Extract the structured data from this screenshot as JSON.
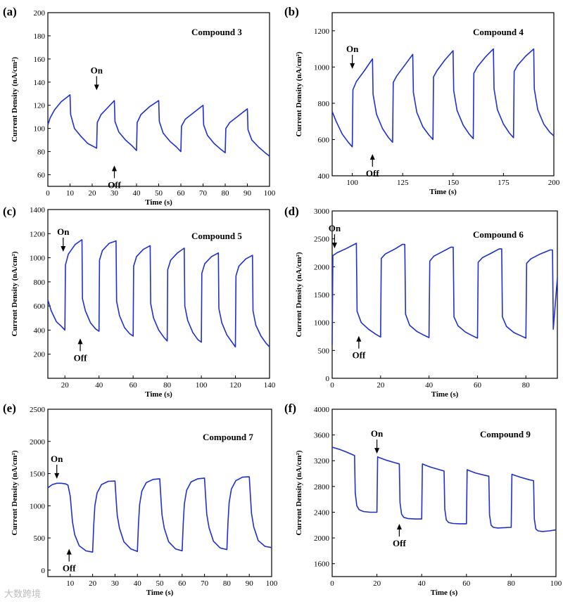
{
  "watermark": "大数跨境",
  "chart_data": [
    {
      "type": "line",
      "panel_label": "(a)",
      "compound": "Compound 3",
      "xlabel": "Time (s)",
      "ylabel": "Current Density (nA/cm²)",
      "xlim": [
        0,
        100
      ],
      "ylim": [
        50,
        200
      ],
      "xticks": [
        0,
        10,
        20,
        30,
        40,
        50,
        60,
        70,
        80,
        90,
        100
      ],
      "yticks": [
        60,
        80,
        100,
        120,
        140,
        160,
        180,
        200
      ],
      "color": "#1f2fd0",
      "on_label": "On",
      "off_label": "Off",
      "on_arrow": {
        "x": 22,
        "y": 133
      },
      "off_arrow": {
        "x": 30,
        "y": 68
      },
      "series": [
        {
          "name": "photocurrent",
          "x": [
            0,
            1,
            3,
            6,
            10,
            10.3,
            12,
            15,
            18,
            22,
            22.3,
            24,
            27,
            30,
            30.3,
            32,
            35,
            38,
            40,
            40.3,
            42,
            46,
            50,
            50.3,
            52,
            55,
            58,
            60,
            60.3,
            62,
            66,
            70,
            70.3,
            72,
            75,
            78,
            80,
            80.3,
            82,
            86,
            90,
            90.3,
            92,
            95,
            98,
            100
          ],
          "y": [
            103,
            109,
            116,
            123,
            129,
            112,
            100,
            93,
            87,
            83,
            105,
            112,
            118,
            124,
            106,
            97,
            90,
            85,
            81,
            105,
            112,
            119,
            124,
            106,
            96,
            89,
            84,
            80,
            102,
            108,
            114,
            120,
            103,
            94,
            87,
            82,
            79,
            100,
            105,
            111,
            117,
            99,
            90,
            84,
            79,
            76
          ]
        }
      ]
    },
    {
      "type": "line",
      "panel_label": "(b)",
      "compound": "Compound 4",
      "xlabel": "Time (s)",
      "ylabel": "Current Density (nA/cm²)",
      "xlim": [
        90,
        200
      ],
      "ylim": [
        400,
        1300
      ],
      "xticks": [
        100,
        125,
        150,
        175,
        200
      ],
      "yticks": [
        400,
        600,
        800,
        1000,
        1200
      ],
      "color": "#1f2fd0",
      "on_label": "On",
      "off_label": "Off",
      "on_arrow": {
        "x": 100,
        "y": 990
      },
      "off_arrow": {
        "x": 110,
        "y": 520
      },
      "series": [
        {
          "name": "photocurrent",
          "x": [
            90,
            92,
            95,
            98,
            100,
            100.3,
            102,
            106,
            110,
            110.3,
            112,
            115,
            118,
            120,
            120.3,
            122,
            126,
            130,
            130.3,
            132,
            135,
            138,
            140,
            140.3,
            142,
            146,
            150,
            150.3,
            152,
            155,
            158,
            160,
            160.3,
            162,
            166,
            170,
            170.3,
            172,
            175,
            178,
            180,
            180.3,
            182,
            186,
            190,
            190.3,
            192,
            195,
            198,
            200
          ],
          "y": [
            755,
            700,
            630,
            585,
            560,
            875,
            920,
            980,
            1045,
            850,
            740,
            660,
            610,
            585,
            915,
            950,
            1010,
            1070,
            860,
            750,
            670,
            625,
            600,
            945,
            980,
            1040,
            1090,
            870,
            760,
            680,
            630,
            605,
            965,
            1000,
            1055,
            1100,
            880,
            765,
            685,
            635,
            610,
            975,
            1010,
            1060,
            1100,
            880,
            765,
            685,
            640,
            620
          ]
        }
      ]
    },
    {
      "type": "line",
      "panel_label": "(c)",
      "compound": "Compound 5",
      "xlabel": "Time (s)",
      "ylabel": "Current Density (nA/cm²)",
      "xlim": [
        10,
        140
      ],
      "ylim": [
        0,
        1400
      ],
      "xticks": [
        20,
        40,
        60,
        80,
        100,
        120,
        140
      ],
      "yticks": [
        200,
        400,
        600,
        800,
        1000,
        1200,
        1400
      ],
      "color": "#1f2fd0",
      "on_label": "On",
      "off_label": "Off",
      "on_arrow": {
        "x": 19,
        "y": 1050
      },
      "off_arrow": {
        "x": 29,
        "y": 330
      },
      "series": [
        {
          "name": "photocurrent",
          "x": [
            10,
            12,
            15,
            18,
            20,
            20.3,
            22,
            26,
            30,
            30.3,
            32,
            35,
            38,
            40,
            40.3,
            42,
            46,
            50,
            50.3,
            52,
            55,
            58,
            60,
            60.3,
            62,
            66,
            70,
            70.3,
            72,
            75,
            78,
            80,
            80.3,
            82,
            86,
            90,
            90.3,
            92,
            95,
            98,
            100,
            100.3,
            102,
            106,
            110,
            110.3,
            112,
            115,
            118,
            120,
            120.3,
            122,
            126,
            130,
            130.3,
            132,
            135,
            138,
            140
          ],
          "y": [
            650,
            560,
            470,
            430,
            400,
            940,
            1030,
            1110,
            1150,
            660,
            560,
            460,
            410,
            390,
            980,
            1060,
            1120,
            1140,
            640,
            520,
            420,
            370,
            350,
            930,
            1010,
            1070,
            1100,
            620,
            500,
            400,
            340,
            310,
            900,
            980,
            1040,
            1080,
            600,
            480,
            380,
            320,
            300,
            870,
            950,
            1010,
            1040,
            580,
            460,
            360,
            300,
            260,
            850,
            930,
            990,
            1020,
            560,
            440,
            350,
            290,
            260
          ]
        }
      ]
    },
    {
      "type": "line",
      "panel_label": "(d)",
      "compound": "Compound 6",
      "xlabel": "Time (s)",
      "ylabel": "Current Density (nA/cm²)",
      "xlim": [
        0,
        93
      ],
      "ylim": [
        0,
        3000
      ],
      "xticks": [
        0,
        20,
        40,
        60,
        80
      ],
      "yticks": [
        0,
        500,
        1000,
        1500,
        2000,
        2500,
        3000
      ],
      "color": "#1f2fd0",
      "on_label": "On",
      "off_label": "Off",
      "on_arrow": {
        "x": 1,
        "y": 2330
      },
      "off_arrow": {
        "x": 11,
        "y": 760
      },
      "series": [
        {
          "name": "photocurrent",
          "x": [
            0,
            0.3,
            2,
            6,
            10,
            10.3,
            12,
            15,
            18,
            20,
            20.3,
            22,
            26,
            29,
            30,
            30.3,
            32,
            35,
            38,
            40,
            40.3,
            42,
            46,
            49,
            50,
            50.3,
            52,
            55,
            58,
            60,
            60.3,
            62,
            66,
            69,
            70,
            70.3,
            72,
            75,
            78,
            80,
            80.3,
            82,
            86,
            90,
            91,
            91.3,
            93
          ],
          "y": [
            600,
            2200,
            2250,
            2330,
            2420,
            1200,
            1000,
            880,
            790,
            740,
            2150,
            2230,
            2320,
            2400,
            2400,
            1150,
            950,
            840,
            770,
            730,
            2100,
            2190,
            2280,
            2350,
            2350,
            1100,
            940,
            830,
            760,
            720,
            2080,
            2160,
            2250,
            2320,
            2320,
            1100,
            930,
            820,
            760,
            720,
            2060,
            2140,
            2230,
            2300,
            2300,
            880,
            1800
          ]
        }
      ]
    },
    {
      "type": "line",
      "panel_label": "(e)",
      "compound": "Compound 7",
      "xlabel": "Time (s)",
      "ylabel": "Current Density (nA/cm²)",
      "xlim": [
        0,
        100
      ],
      "ylim": [
        -100,
        2500
      ],
      "xticks": [
        10,
        20,
        30,
        40,
        50,
        60,
        70,
        80,
        90,
        100
      ],
      "yticks": [
        0,
        500,
        1000,
        1500,
        2000,
        2500
      ],
      "color": "#1f2fd0",
      "on_label": "On",
      "off_label": "Off",
      "on_arrow": {
        "x": 4,
        "y": 1420
      },
      "off_arrow": {
        "x": 9.5,
        "y": 330
      },
      "series": [
        {
          "name": "photocurrent",
          "x": [
            0,
            2,
            4,
            6,
            8,
            9,
            10,
            10.5,
            11,
            12,
            14,
            17,
            20,
            20.5,
            21,
            22,
            24,
            27,
            30,
            30.5,
            31,
            32,
            34,
            37,
            40,
            40.5,
            41,
            42,
            44,
            47,
            50,
            50.5,
            51,
            52,
            54,
            57,
            60,
            60.5,
            61,
            62,
            64,
            67,
            70,
            70.5,
            71,
            72,
            74,
            77,
            80,
            80.5,
            81,
            82,
            84,
            87,
            90,
            90.5,
            91,
            92,
            94,
            97,
            100
          ],
          "y": [
            1280,
            1330,
            1350,
            1350,
            1340,
            1320,
            1150,
            950,
            750,
            550,
            380,
            300,
            280,
            700,
            1000,
            1200,
            1330,
            1380,
            1385,
            1100,
            850,
            650,
            440,
            330,
            290,
            720,
            1020,
            1230,
            1360,
            1410,
            1420,
            1130,
            860,
            650,
            440,
            330,
            300,
            730,
            1030,
            1240,
            1370,
            1420,
            1430,
            1140,
            870,
            660,
            450,
            345,
            320,
            750,
            1050,
            1260,
            1390,
            1445,
            1450,
            1160,
            880,
            670,
            460,
            370,
            350
          ]
        }
      ]
    },
    {
      "type": "line",
      "panel_label": "(f)",
      "compound": "Compound 9",
      "xlabel": "Time (s)",
      "ylabel": "Current Density (nA/cm²)",
      "xlim": [
        0,
        100
      ],
      "ylim": [
        1400,
        4000
      ],
      "xticks": [
        0,
        20,
        40,
        60,
        80,
        100
      ],
      "yticks": [
        1600,
        2000,
        2400,
        2800,
        3200,
        3600,
        4000
      ],
      "color": "#1f2fd0",
      "on_label": "On",
      "off_label": "Off",
      "on_arrow": {
        "x": 20,
        "y": 3310
      },
      "off_arrow": {
        "x": 30,
        "y": 2220
      },
      "series": [
        {
          "name": "photocurrent",
          "x": [
            0,
            3,
            6,
            10,
            10.3,
            11,
            12,
            14,
            17,
            20,
            20.3,
            21,
            24,
            28,
            30,
            30.3,
            31,
            32,
            34,
            37,
            40,
            40.3,
            41,
            44,
            48,
            50,
            50.3,
            51,
            52,
            54,
            57,
            60,
            60.3,
            61,
            64,
            68,
            70,
            70.3,
            71,
            72,
            74,
            77,
            80,
            80.3,
            81,
            84,
            88,
            90,
            90.3,
            91,
            92,
            94,
            97,
            100
          ],
          "y": [
            3410,
            3380,
            3340,
            3280,
            2700,
            2500,
            2440,
            2410,
            2400,
            2400,
            3260,
            3250,
            3210,
            3170,
            3150,
            2550,
            2370,
            2320,
            2300,
            2295,
            2295,
            3150,
            3140,
            3100,
            3060,
            3040,
            2450,
            2280,
            2240,
            2225,
            2220,
            2220,
            3060,
            3050,
            3010,
            2975,
            2960,
            2360,
            2200,
            2165,
            2155,
            2160,
            2165,
            2990,
            2980,
            2945,
            2905,
            2890,
            2300,
            2140,
            2110,
            2100,
            2110,
            2125
          ]
        }
      ]
    }
  ]
}
